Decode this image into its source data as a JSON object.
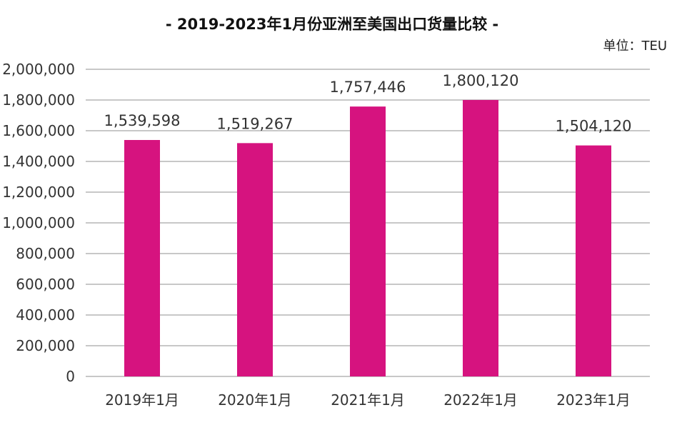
{
  "chart_data": {
    "type": "bar",
    "title": "- 2019-2023年1月份亚洲至美国出口货量比较 -",
    "unit": "单位：TEU",
    "xlabel": "",
    "ylabel": "",
    "categories": [
      "2019年1月",
      "2020年1月",
      "2021年1月",
      "2022年1月",
      "2023年1月"
    ],
    "values": [
      1539598,
      1519267,
      1757446,
      1800120,
      1504120
    ],
    "value_labels": [
      "1,539,598",
      "1,519,267",
      "1,757,446",
      "1,800,120",
      "1,504,120"
    ],
    "ylim": [
      0,
      2000000
    ],
    "yticks": [
      0,
      200000,
      400000,
      600000,
      800000,
      1000000,
      1200000,
      1400000,
      1600000,
      1800000,
      2000000
    ],
    "ytick_labels": [
      "0",
      "200,000",
      "400,000",
      "600,000",
      "800,000",
      "1,000,000",
      "1,200,000",
      "1,400,000",
      "1,600,000",
      "1,800,000",
      "2,000,000"
    ],
    "grid": true,
    "legend": "none",
    "colors": {
      "bar": "#D6137F",
      "grid": "#C8C8C8"
    }
  }
}
